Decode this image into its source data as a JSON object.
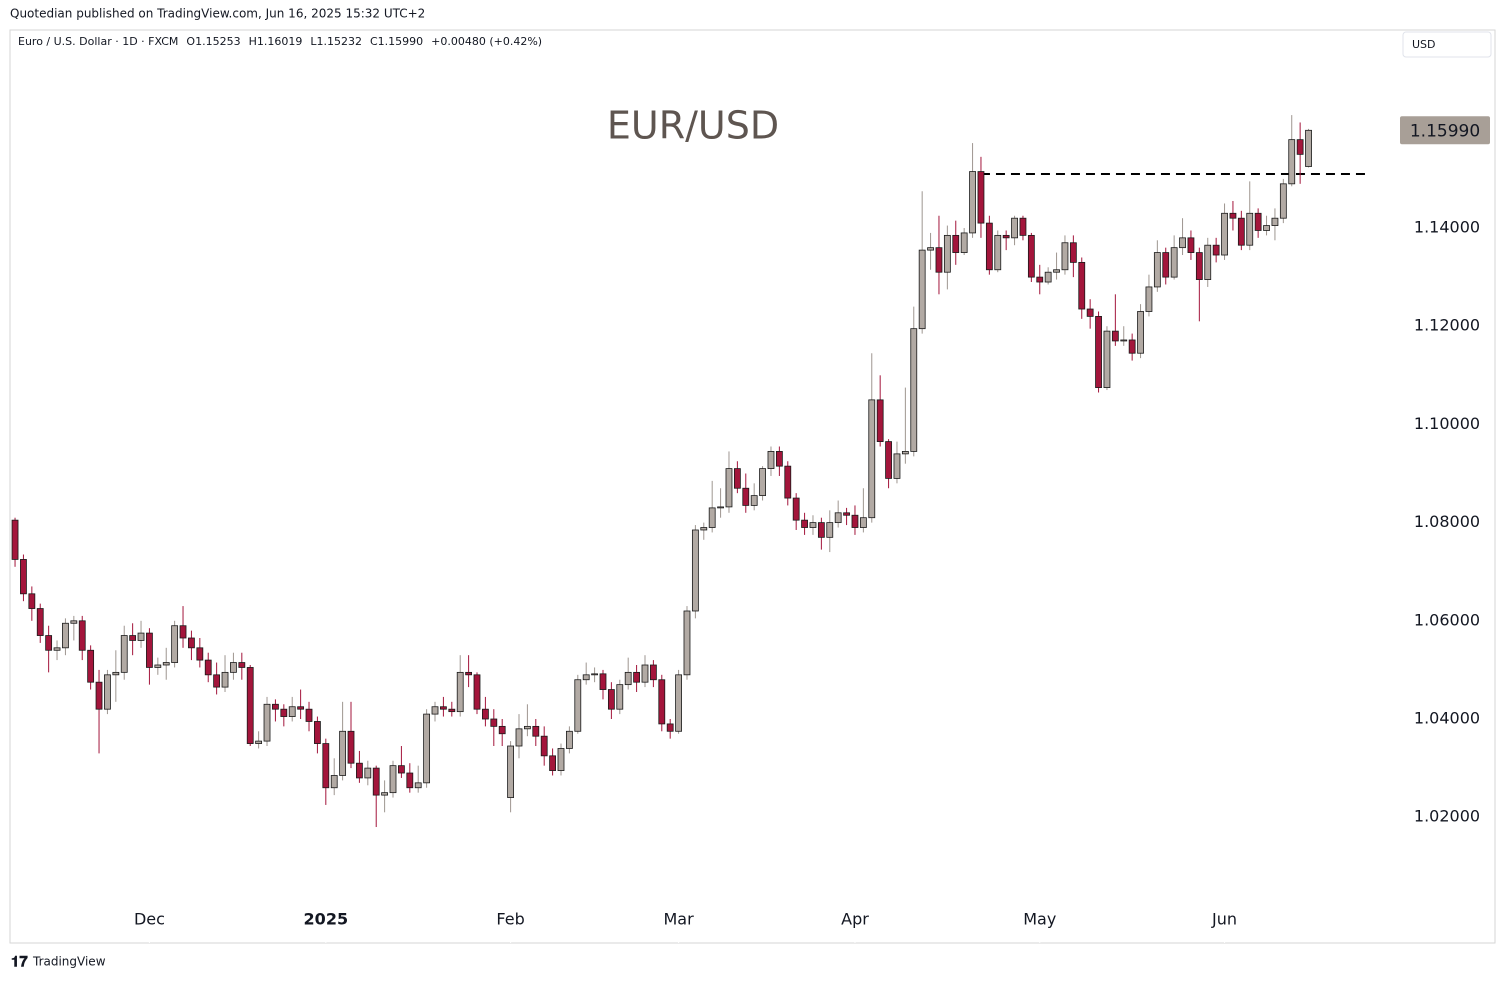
{
  "publisher": "Quotedian published on TradingView.com, Jun 16, 2025 15:32 UTC+2",
  "currency_button": "USD",
  "footer_brand": "TradingView",
  "chart_data": {
    "type": "candlestick",
    "title": "EUR/USD",
    "symbol": "Euro / U.S. Dollar · 1D · FXCM",
    "ohlc_labels": [
      "O1.15253",
      "H1.16019",
      "L1.15232",
      "C1.15990"
    ],
    "change_label": "+0.00480 (+0.42%)",
    "up_color": "#b2aaa4",
    "down_color": "#a3153b",
    "open": [
      1.0805,
      1.0725,
      1.0655,
      1.0625,
      1.057,
      1.054,
      1.0545,
      1.0595,
      1.06,
      1.054,
      1.0475,
      1.042,
      1.049,
      1.0495,
      1.057,
      1.056,
      1.0575,
      1.0505,
      1.051,
      1.0515,
      1.059,
      1.0565,
      1.0545,
      1.052,
      1.049,
      1.0465,
      1.0495,
      1.0515,
      1.0505,
      1.035,
      1.0355,
      1.043,
      1.042,
      1.0405,
      1.0425,
      1.042,
      1.0395,
      1.035,
      1.026,
      1.0285,
      1.0375,
      1.031,
      1.028,
      1.03,
      1.0245,
      1.025,
      1.0305,
      1.029,
      1.026,
      1.027,
      1.041,
      1.0425,
      1.042,
      1.0415,
      1.0495,
      1.049,
      1.042,
      1.04,
      1.0385,
      1.024,
      1.0345,
      1.038,
      1.0385,
      1.0365,
      1.0325,
      1.0295,
      1.034,
      1.0375,
      1.048,
      1.049,
      1.0492,
      1.046,
      1.042,
      1.047,
      1.0495,
      1.0475,
      1.051,
      1.048,
      1.039,
      1.0375,
      1.049,
      1.062,
      1.0785,
      1.079,
      1.083,
      1.0832,
      1.091,
      1.087,
      1.0835,
      1.0855,
      1.091,
      1.0945,
      1.0915,
      1.085,
      1.0805,
      1.079,
      1.08,
      1.077,
      1.08,
      1.082,
      1.0815,
      1.079,
      1.081,
      1.105,
      1.0965,
      1.089,
      1.094,
      1.0945,
      1.1195,
      1.1355,
      1.136,
      1.131,
      1.1385,
      1.135,
      1.139,
      1.1515,
      1.141,
      1.1315,
      1.1385,
      1.138,
      1.142,
      1.1385,
      1.13,
      1.129,
      1.131,
      1.1315,
      1.137,
      1.133,
      1.1235,
      1.122,
      1.1075,
      1.119,
      1.117,
      1.1172,
      1.1145,
      1.123,
      1.128,
      1.135,
      1.13,
      1.136,
      1.138,
      1.135,
      1.1295,
      1.1365,
      1.1345,
      1.143,
      1.142,
      1.1365,
      1.143,
      1.1395,
      1.1405,
      1.142,
      1.149,
      1.158,
      1.15253
    ],
    "high": [
      1.081,
      1.0735,
      1.067,
      1.0635,
      1.059,
      1.056,
      1.0605,
      1.061,
      1.061,
      1.055,
      1.05,
      1.05,
      1.054,
      1.059,
      1.0595,
      1.06,
      1.0585,
      1.0525,
      1.0545,
      1.06,
      1.063,
      1.058,
      1.0565,
      1.0535,
      1.0515,
      1.053,
      1.0535,
      1.0535,
      1.051,
      1.0375,
      1.0445,
      1.044,
      1.043,
      1.0445,
      1.046,
      1.0435,
      1.0405,
      1.036,
      1.032,
      1.0435,
      1.0435,
      1.0335,
      1.0315,
      1.0305,
      1.0275,
      1.0315,
      1.0345,
      1.031,
      1.0305,
      1.042,
      1.0435,
      1.0445,
      1.0435,
      1.053,
      1.053,
      1.0495,
      1.0445,
      1.042,
      1.04,
      1.0355,
      1.041,
      1.043,
      1.04,
      1.0385,
      1.034,
      1.035,
      1.0385,
      1.049,
      1.0515,
      1.0505,
      1.05,
      1.0475,
      1.048,
      1.0525,
      1.051,
      1.053,
      1.052,
      1.049,
      1.04,
      1.05,
      1.063,
      1.0795,
      1.08,
      1.0885,
      1.087,
      1.0945,
      1.0925,
      1.09,
      1.088,
      1.0915,
      1.0955,
      1.0955,
      1.0925,
      1.086,
      1.082,
      1.0815,
      1.081,
      1.0825,
      1.0845,
      1.083,
      1.0835,
      1.087,
      1.1145,
      1.11,
      1.097,
      1.0965,
      1.1075,
      1.124,
      1.1475,
      1.139,
      1.1425,
      1.1405,
      1.1415,
      1.14,
      1.1573,
      1.1545,
      1.1425,
      1.1395,
      1.1395,
      1.1425,
      1.1425,
      1.139,
      1.1325,
      1.132,
      1.135,
      1.1385,
      1.1385,
      1.134,
      1.1255,
      1.123,
      1.12,
      1.1265,
      1.12,
      1.1185,
      1.1245,
      1.1305,
      1.1375,
      1.136,
      1.1385,
      1.142,
      1.1395,
      1.136,
      1.138,
      1.138,
      1.145,
      1.1455,
      1.1435,
      1.1495,
      1.144,
      1.1425,
      1.144,
      1.15,
      1.163,
      1.1615,
      1.16019
    ],
    "low": [
      1.071,
      1.064,
      1.06,
      1.0555,
      1.0495,
      1.052,
      1.053,
      1.056,
      1.052,
      1.046,
      1.033,
      1.041,
      1.0435,
      1.048,
      1.053,
      1.0545,
      1.047,
      1.049,
      1.048,
      1.0505,
      1.0545,
      1.052,
      1.0505,
      1.0475,
      1.045,
      1.0455,
      1.048,
      1.048,
      1.0345,
      1.034,
      1.0345,
      1.0395,
      1.0385,
      1.0395,
      1.04,
      1.0375,
      1.033,
      1.0225,
      1.0245,
      1.0275,
      1.03,
      1.027,
      1.0265,
      1.018,
      1.021,
      1.024,
      1.028,
      1.025,
      1.025,
      1.026,
      1.0395,
      1.0405,
      1.0405,
      1.0405,
      1.0465,
      1.041,
      1.0385,
      1.0345,
      1.0345,
      1.021,
      1.032,
      1.0365,
      1.0345,
      1.0305,
      1.0285,
      1.0285,
      1.033,
      1.037,
      1.047,
      1.0475,
      1.044,
      1.04,
      1.041,
      1.046,
      1.0455,
      1.0465,
      1.0465,
      1.0375,
      1.036,
      1.037,
      1.048,
      1.0605,
      1.0765,
      1.078,
      1.081,
      1.082,
      1.086,
      1.082,
      1.0825,
      1.0845,
      1.0895,
      1.0895,
      1.0835,
      1.0785,
      1.0775,
      1.0775,
      1.0745,
      1.074,
      1.079,
      1.0795,
      1.0775,
      1.078,
      1.08,
      1.0955,
      1.087,
      1.088,
      1.092,
      1.0935,
      1.1185,
      1.1315,
      1.1265,
      1.1275,
      1.1325,
      1.1345,
      1.138,
      1.138,
      1.1305,
      1.131,
      1.1355,
      1.1365,
      1.1375,
      1.129,
      1.1265,
      1.1285,
      1.1295,
      1.1305,
      1.13,
      1.1215,
      1.1195,
      1.1065,
      1.107,
      1.116,
      1.116,
      1.113,
      1.1135,
      1.122,
      1.127,
      1.1285,
      1.1295,
      1.1345,
      1.1335,
      1.121,
      1.128,
      1.133,
      1.1335,
      1.1395,
      1.1355,
      1.1355,
      1.138,
      1.1385,
      1.1375,
      1.141,
      1.1485,
      1.149,
      1.15232
    ],
    "close": [
      1.0725,
      1.0655,
      1.0625,
      1.057,
      1.054,
      1.0545,
      1.0595,
      1.06,
      1.054,
      1.0475,
      1.042,
      1.049,
      1.0495,
      1.057,
      1.056,
      1.0575,
      1.0505,
      1.051,
      1.0515,
      1.059,
      1.0565,
      1.0545,
      1.052,
      1.049,
      1.0465,
      1.0495,
      1.0515,
      1.0505,
      1.035,
      1.0355,
      1.043,
      1.042,
      1.0405,
      1.0425,
      1.042,
      1.0395,
      1.035,
      1.026,
      1.0285,
      1.0375,
      1.031,
      1.028,
      1.03,
      1.0245,
      1.025,
      1.0305,
      1.029,
      1.026,
      1.027,
      1.041,
      1.0425,
      1.042,
      1.0415,
      1.0495,
      1.049,
      1.042,
      1.04,
      1.0385,
      1.037,
      1.0345,
      1.038,
      1.0385,
      1.0365,
      1.0325,
      1.0295,
      1.034,
      1.0375,
      1.048,
      1.049,
      1.0492,
      1.046,
      1.042,
      1.047,
      1.0495,
      1.0475,
      1.051,
      1.048,
      1.039,
      1.0375,
      1.049,
      1.062,
      1.0785,
      1.079,
      1.083,
      1.0832,
      1.091,
      1.087,
      1.0835,
      1.0855,
      1.091,
      1.0945,
      1.0915,
      1.085,
      1.0805,
      1.079,
      1.08,
      1.077,
      1.08,
      1.082,
      1.0815,
      1.079,
      1.081,
      1.105,
      1.0965,
      1.089,
      1.094,
      1.0945,
      1.1195,
      1.1355,
      1.136,
      1.131,
      1.1385,
      1.135,
      1.139,
      1.1515,
      1.141,
      1.1315,
      1.1385,
      1.138,
      1.142,
      1.1385,
      1.13,
      1.129,
      1.131,
      1.1315,
      1.137,
      1.133,
      1.1235,
      1.122,
      1.1075,
      1.119,
      1.117,
      1.1172,
      1.1145,
      1.123,
      1.128,
      1.135,
      1.13,
      1.136,
      1.138,
      1.135,
      1.1295,
      1.1365,
      1.1345,
      1.143,
      1.142,
      1.1365,
      1.143,
      1.1395,
      1.1405,
      1.142,
      1.149,
      1.158,
      1.155,
      1.1599
    ],
    "last_price_label": "1.15990",
    "level_line": {
      "value": 1.151,
      "start": 115
    },
    "ylim": [
      0.99438,
      1.18033
    ],
    "yticks": [
      {
        "value": 1.02,
        "label": "1.02000"
      },
      {
        "value": 1.04,
        "label": "1.04000"
      },
      {
        "value": 1.06,
        "label": "1.06000"
      },
      {
        "value": 1.08,
        "label": "1.08000"
      },
      {
        "value": 1.1,
        "label": "1.10000"
      },
      {
        "value": 1.12,
        "label": "1.12000"
      },
      {
        "value": 1.14,
        "label": "1.14000"
      }
    ],
    "xlim": [
      -0.6,
      176.2
    ],
    "xticks": [
      {
        "value": 16,
        "label": "Dec"
      },
      {
        "value": 37,
        "label": "2025"
      },
      {
        "value": 59,
        "label": "Feb"
      },
      {
        "value": 79,
        "label": "Mar"
      },
      {
        "value": 100,
        "label": "Apr"
      },
      {
        "value": 122,
        "label": "May"
      },
      {
        "value": 144,
        "label": "Jun"
      }
    ]
  }
}
